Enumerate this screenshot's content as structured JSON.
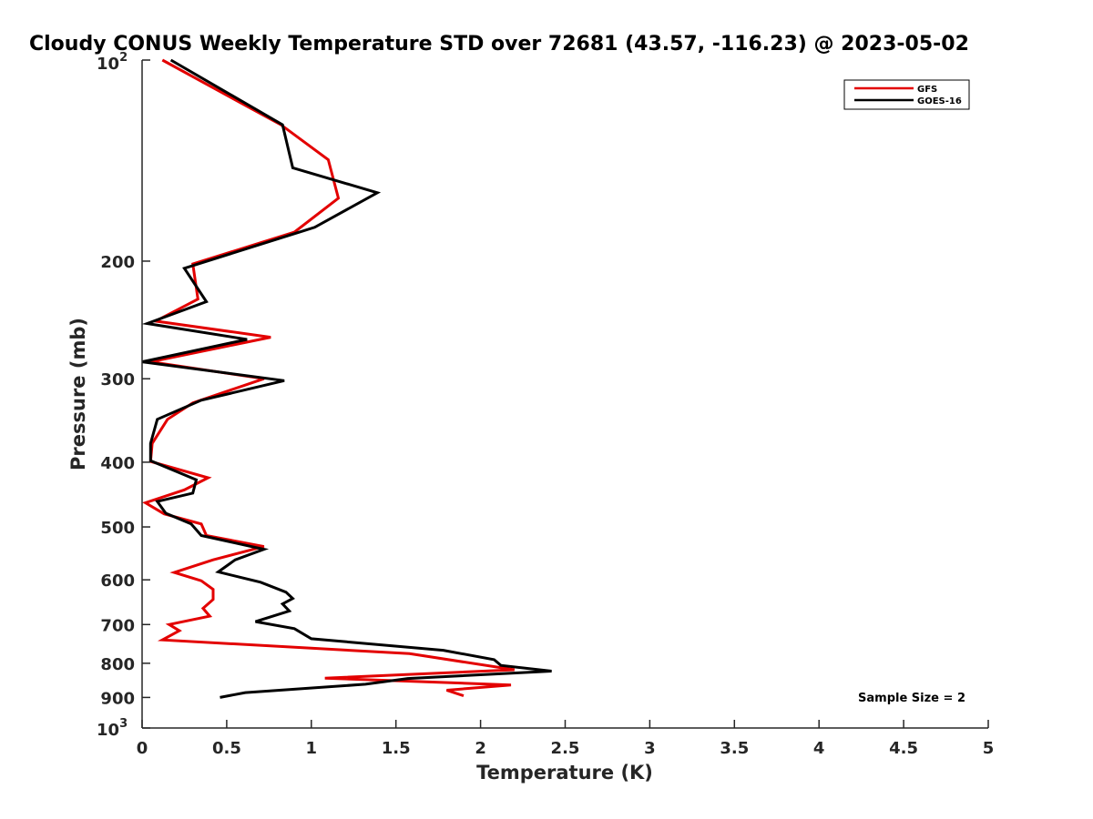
{
  "chart_data": {
    "type": "line",
    "title": "Cloudy CONUS Weekly Temperature STD over 72681 (43.57, -116.23) @ 2023-05-02",
    "xlabel": "Temperature (K)",
    "ylabel": "Pressure (mb)",
    "xlim": [
      0,
      5
    ],
    "ylim": [
      100,
      1000
    ],
    "y_scale": "log",
    "y_reversed": true,
    "xticks": [
      0,
      0.5,
      1,
      1.5,
      2,
      2.5,
      3,
      3.5,
      4,
      4.5,
      5
    ],
    "xtick_labels": [
      "0",
      "0.5",
      "1",
      "1.5",
      "2",
      "2.5",
      "3",
      "3.5",
      "4",
      "4.5",
      "5"
    ],
    "yticks": [
      200,
      300,
      400,
      500,
      600,
      700,
      800,
      900
    ],
    "ytick_labels": [
      "200",
      "300",
      "400",
      "500",
      "600",
      "700",
      "800",
      "900"
    ],
    "ytick_top": {
      "base": "10",
      "exp": "2",
      "value": 100
    },
    "ytick_bottom": {
      "base": "10",
      "exp": "3",
      "value": 1000
    },
    "grid": false,
    "legend_position": "top-right",
    "annotation": "Sample Size = 2",
    "series": [
      {
        "name": "GFS",
        "color": "#e30000",
        "points": [
          [
            0.12,
            100
          ],
          [
            0.82,
            125
          ],
          [
            1.1,
            141
          ],
          [
            1.16,
            161
          ],
          [
            0.9,
            181
          ],
          [
            0.3,
            202
          ],
          [
            0.33,
            228
          ],
          [
            0.08,
            246
          ],
          [
            0.76,
            260
          ],
          [
            0.05,
            283
          ],
          [
            0.72,
            300
          ],
          [
            0.3,
            326
          ],
          [
            0.15,
            345
          ],
          [
            0.06,
            375
          ],
          [
            0.05,
            399
          ],
          [
            0.39,
            422
          ],
          [
            0.25,
            440
          ],
          [
            0.02,
            460
          ],
          [
            0.13,
            478
          ],
          [
            0.35,
            495
          ],
          [
            0.38,
            515
          ],
          [
            0.72,
            535
          ],
          [
            0.42,
            560
          ],
          [
            0.19,
            585
          ],
          [
            0.35,
            602
          ],
          [
            0.42,
            620
          ],
          [
            0.42,
            642
          ],
          [
            0.36,
            662
          ],
          [
            0.4,
            680
          ],
          [
            0.16,
            700
          ],
          [
            0.22,
            715
          ],
          [
            0.12,
            738
          ],
          [
            1.58,
            774
          ],
          [
            2.2,
            818
          ],
          [
            1.08,
            842
          ],
          [
            2.18,
            862
          ],
          [
            1.8,
            878
          ],
          [
            1.9,
            895
          ]
        ]
      },
      {
        "name": "GOES-16",
        "color": "#000000",
        "points": [
          [
            0.17,
            100
          ],
          [
            0.83,
            125
          ],
          [
            0.89,
            145
          ],
          [
            1.39,
            158
          ],
          [
            1.02,
            178
          ],
          [
            0.25,
            205
          ],
          [
            0.38,
            230
          ],
          [
            0.03,
            248
          ],
          [
            0.62,
            262
          ],
          [
            0.0,
            283
          ],
          [
            0.84,
            302
          ],
          [
            0.35,
            323
          ],
          [
            0.09,
            345
          ],
          [
            0.05,
            375
          ],
          [
            0.05,
            398
          ],
          [
            0.32,
            425
          ],
          [
            0.3,
            445
          ],
          [
            0.09,
            458
          ],
          [
            0.14,
            477
          ],
          [
            0.29,
            495
          ],
          [
            0.35,
            515
          ],
          [
            0.72,
            540
          ],
          [
            0.55,
            560
          ],
          [
            0.45,
            584
          ],
          [
            0.7,
            605
          ],
          [
            0.85,
            626
          ],
          [
            0.89,
            640
          ],
          [
            0.83,
            652
          ],
          [
            0.87,
            668
          ],
          [
            0.67,
            693
          ],
          [
            0.9,
            710
          ],
          [
            1.0,
            735
          ],
          [
            1.78,
            765
          ],
          [
            2.08,
            790
          ],
          [
            2.12,
            806
          ],
          [
            2.42,
            822
          ],
          [
            1.57,
            843
          ],
          [
            1.32,
            860
          ],
          [
            0.61,
            885
          ],
          [
            0.46,
            900
          ]
        ]
      }
    ]
  }
}
